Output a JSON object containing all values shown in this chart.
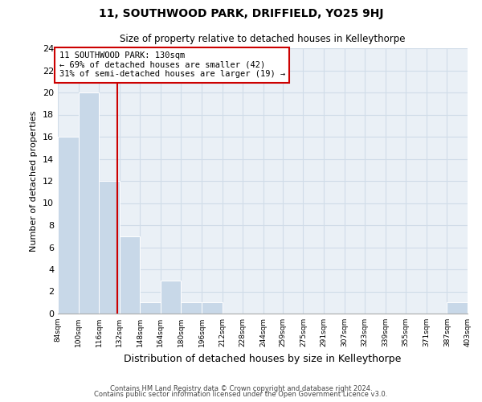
{
  "title": "11, SOUTHWOOD PARK, DRIFFIELD, YO25 9HJ",
  "subtitle": "Size of property relative to detached houses in Kelleythorpe",
  "xlabel": "Distribution of detached houses by size in Kelleythorpe",
  "ylabel": "Number of detached properties",
  "bin_edges": [
    84,
    100,
    116,
    132,
    148,
    164,
    180,
    196,
    212,
    228,
    244,
    259,
    275,
    291,
    307,
    323,
    339,
    355,
    371,
    387,
    403
  ],
  "bar_heights": [
    16,
    20,
    12,
    7,
    1,
    3,
    1,
    1,
    0,
    0,
    0,
    0,
    0,
    0,
    0,
    0,
    0,
    0,
    0,
    1
  ],
  "bar_color": "#c8d8e8",
  "bar_edge_color": "#ffffff",
  "property_value": 130,
  "vline_color": "#cc0000",
  "annotation_box_edge_color": "#cc0000",
  "annotation_lines": [
    "11 SOUTHWOOD PARK: 130sqm",
    "← 69% of detached houses are smaller (42)",
    "31% of semi-detached houses are larger (19) →"
  ],
  "ylim": [
    0,
    24
  ],
  "yticks": [
    0,
    2,
    4,
    6,
    8,
    10,
    12,
    14,
    16,
    18,
    20,
    22,
    24
  ],
  "tick_labels": [
    "84sqm",
    "100sqm",
    "116sqm",
    "132sqm",
    "148sqm",
    "164sqm",
    "180sqm",
    "196sqm",
    "212sqm",
    "228sqm",
    "244sqm",
    "259sqm",
    "275sqm",
    "291sqm",
    "307sqm",
    "323sqm",
    "339sqm",
    "355sqm",
    "371sqm",
    "387sqm",
    "403sqm"
  ],
  "footer_line1": "Contains HM Land Registry data © Crown copyright and database right 2024.",
  "footer_line2": "Contains public sector information licensed under the Open Government Licence v3.0.",
  "grid_color": "#d0dce8",
  "background_color": "#eaf0f6"
}
